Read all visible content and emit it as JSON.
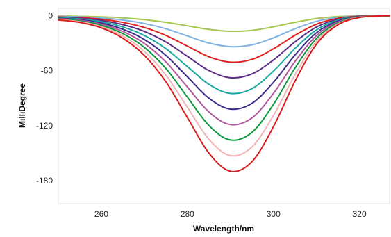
{
  "chart_data": {
    "type": "line",
    "xlabel": "Wavelength/nm",
    "ylabel": "MilliDegree",
    "xlim": [
      250,
      327
    ],
    "ylim": [
      -205,
      8
    ],
    "xticks": [
      260,
      280,
      300,
      320
    ],
    "yticks": [
      0,
      -60,
      -120,
      -180
    ],
    "grid": false,
    "legend": "none",
    "series": [
      {
        "color": "#a8c64a",
        "x": [
          250,
          255,
          260,
          265,
          270,
          275,
          280,
          285,
          290,
          295,
          300,
          305,
          310,
          315,
          320,
          325,
          327
        ],
        "y": [
          -0.4,
          -0.7,
          -1.3,
          -2.4,
          -4.3,
          -7.2,
          -11.1,
          -14.9,
          -17.0,
          -16.0,
          -12.1,
          -7.2,
          -3.1,
          -1.0,
          -0.2,
          -0.1,
          0
        ]
      },
      {
        "color": "#7fb2e0",
        "x": [
          250,
          255,
          260,
          265,
          270,
          275,
          280,
          285,
          290,
          295,
          300,
          305,
          310,
          315,
          320,
          325,
          327
        ],
        "y": [
          -0.9,
          -1.4,
          -2.6,
          -4.8,
          -8.5,
          -14.3,
          -22.1,
          -29.8,
          -33.8,
          -31.8,
          -24.2,
          -14.3,
          -6.2,
          -1.9,
          -0.4,
          -0.1,
          0
        ]
      },
      {
        "color": "#e0201e",
        "x": [
          250,
          255,
          260,
          265,
          270,
          275,
          280,
          285,
          290,
          295,
          300,
          305,
          310,
          315,
          320,
          325,
          327
        ],
        "y": [
          -1.4,
          -2.2,
          -3.9,
          -7.3,
          -12.9,
          -21.5,
          -33.2,
          -44.8,
          -50.7,
          -47.6,
          -36.2,
          -21.4,
          -9.3,
          -2.9,
          -0.6,
          -0.1,
          0
        ]
      },
      {
        "color": "#5b2c86",
        "x": [
          250,
          255,
          260,
          265,
          270,
          275,
          280,
          285,
          290,
          295,
          300,
          305,
          310,
          315,
          320,
          325,
          327
        ],
        "y": [
          -1.8,
          -2.9,
          -5.3,
          -9.8,
          -17.2,
          -28.7,
          -44.3,
          -59.8,
          -67.7,
          -63.5,
          -48.3,
          -28.6,
          -12.4,
          -3.9,
          -0.8,
          -0.1,
          0
        ]
      },
      {
        "color": "#1aa8a0",
        "x": [
          250,
          255,
          260,
          265,
          270,
          275,
          280,
          285,
          290,
          295,
          300,
          305,
          310,
          315,
          320,
          325,
          327
        ],
        "y": [
          -2.3,
          -3.6,
          -6.6,
          -12.3,
          -21.6,
          -36.0,
          -55.5,
          -74.9,
          -84.8,
          -79.6,
          -60.5,
          -35.8,
          -15.5,
          -4.9,
          -1.0,
          -0.1,
          0
        ]
      },
      {
        "color": "#3b2a8c",
        "x": [
          250,
          255,
          260,
          265,
          270,
          275,
          280,
          285,
          290,
          295,
          300,
          305,
          310,
          315,
          320,
          325,
          327
        ],
        "y": [
          -2.8,
          -4.4,
          -8.0,
          -14.8,
          -26.0,
          -43.3,
          -66.7,
          -90.0,
          -101.9,
          -95.6,
          -72.7,
          -43.0,
          -18.6,
          -5.9,
          -1.2,
          -0.2,
          0
        ]
      },
      {
        "color": "#b0559e",
        "x": [
          250,
          255,
          260,
          265,
          270,
          275,
          280,
          285,
          290,
          295,
          300,
          305,
          310,
          315,
          320,
          325,
          327
        ],
        "y": [
          -3.3,
          -5.1,
          -9.3,
          -17.2,
          -30.3,
          -50.5,
          -77.8,
          -105.0,
          -118.8,
          -111.5,
          -84.8,
          -50.1,
          -21.7,
          -6.9,
          -1.4,
          -0.2,
          0
        ]
      },
      {
        "color": "#0a9a3c",
        "x": [
          250,
          255,
          260,
          265,
          270,
          275,
          280,
          285,
          290,
          295,
          300,
          305,
          310,
          315,
          320,
          325,
          327
        ],
        "y": [
          -3.7,
          -5.8,
          -10.6,
          -19.6,
          -34.6,
          -57.6,
          -88.8,
          -119.8,
          -135.6,
          -127.3,
          -96.8,
          -57.2,
          -24.8,
          -7.9,
          -1.6,
          -0.2,
          0
        ]
      },
      {
        "color": "#f2b4b4",
        "x": [
          250,
          255,
          260,
          265,
          270,
          275,
          280,
          285,
          290,
          295,
          300,
          305,
          310,
          315,
          320,
          325,
          327
        ],
        "y": [
          -4.2,
          -6.6,
          -11.9,
          -22.1,
          -38.9,
          -64.8,
          -99.9,
          -134.8,
          -152.6,
          -143.2,
          -108.9,
          -64.4,
          -27.9,
          -8.9,
          -1.8,
          -0.2,
          0
        ]
      },
      {
        "color": "#d81a1a",
        "x": [
          250,
          255,
          260,
          265,
          270,
          275,
          280,
          285,
          290,
          295,
          300,
          305,
          310,
          315,
          320,
          325,
          327
        ],
        "y": [
          -4.7,
          -7.4,
          -13.3,
          -24.6,
          -43.3,
          -72.1,
          -111.1,
          -149.9,
          -169.7,
          -159.3,
          -121.1,
          -71.6,
          -31.0,
          -9.9,
          -2.0,
          -0.2,
          0
        ]
      }
    ]
  }
}
